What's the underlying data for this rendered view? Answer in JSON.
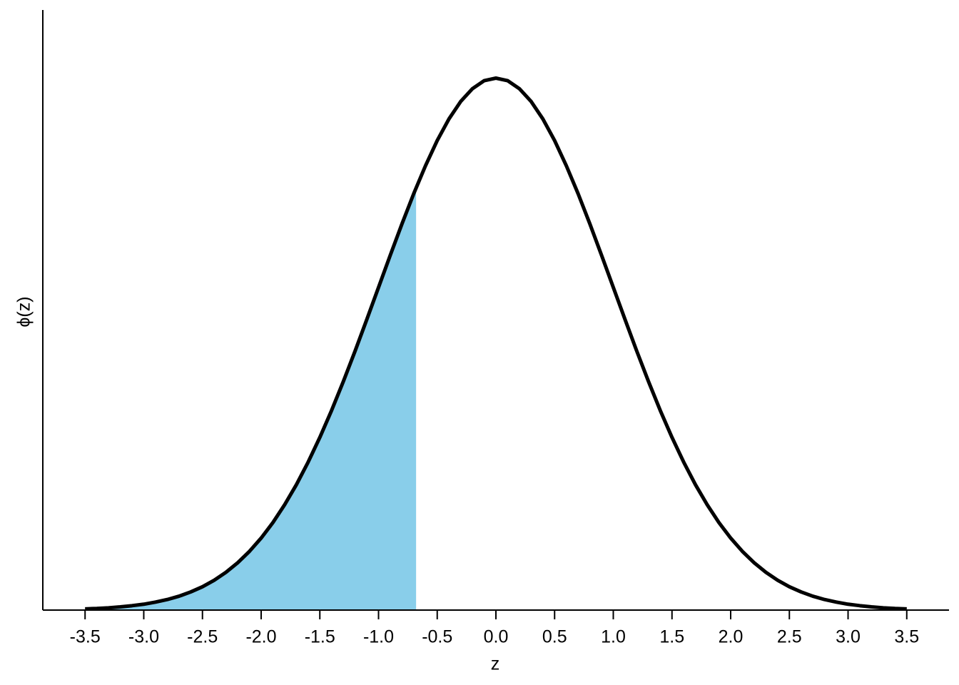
{
  "chart_data": {
    "type": "line",
    "x_label": "z",
    "y_label": "ϕ(z)",
    "x": [
      -3.5,
      -3.4,
      -3.3,
      -3.2,
      -3.1,
      -3.0,
      -2.9,
      -2.8,
      -2.7,
      -2.6,
      -2.5,
      -2.4,
      -2.3,
      -2.2,
      -2.1,
      -2.0,
      -1.9,
      -1.8,
      -1.7,
      -1.6,
      -1.5,
      -1.4,
      -1.3,
      -1.2,
      -1.1,
      -1.0,
      -0.9,
      -0.8,
      -0.7,
      -0.6,
      -0.5,
      -0.4,
      -0.3,
      -0.2,
      -0.1,
      0,
      0.1,
      0.2,
      0.3,
      0.4,
      0.5,
      0.6,
      0.7,
      0.8,
      0.9,
      1.0,
      1.1,
      1.2,
      1.3,
      1.4,
      1.5,
      1.6,
      1.7,
      1.8,
      1.9,
      2.0,
      2.1,
      2.2,
      2.3,
      2.4,
      2.5,
      2.6,
      2.7,
      2.8,
      2.9,
      3.0,
      3.1,
      3.2,
      3.3,
      3.4,
      3.5
    ],
    "values": [
      0.0009,
      0.0012,
      0.0017,
      0.0024,
      0.0033,
      0.0044,
      0.006,
      0.0079,
      0.0104,
      0.0136,
      0.0175,
      0.0224,
      0.0283,
      0.0355,
      0.044,
      0.054,
      0.0656,
      0.079,
      0.094,
      0.1109,
      0.1295,
      0.1497,
      0.1714,
      0.1942,
      0.2179,
      0.242,
      0.2661,
      0.2897,
      0.3123,
      0.3332,
      0.3521,
      0.3683,
      0.3814,
      0.391,
      0.397,
      0.3989,
      0.397,
      0.391,
      0.3814,
      0.3683,
      0.3521,
      0.3332,
      0.3123,
      0.2897,
      0.2661,
      0.242,
      0.2179,
      0.1942,
      0.1714,
      0.1497,
      0.1295,
      0.1109,
      0.094,
      0.079,
      0.0656,
      0.054,
      0.044,
      0.0355,
      0.0283,
      0.0224,
      0.0175,
      0.0136,
      0.0104,
      0.0079,
      0.006,
      0.0044,
      0.0033,
      0.0024,
      0.0017,
      0.0012,
      0.0009
    ],
    "color": "#000000",
    "shade": {
      "from": -3.5,
      "to": -0.68,
      "color": "#89ceea"
    },
    "xlim": [
      -3.86,
      3.86
    ],
    "ylim": [
      0,
      0.45
    ],
    "xticks": [
      -3.5,
      {
        "value": -3,
        "label": "-3.0"
      },
      -2.5,
      {
        "value": -2,
        "label": "-2.0"
      },
      -1.5,
      {
        "value": -1,
        "label": "-1.0"
      },
      -0.5,
      {
        "value": 0,
        "label": "0.0"
      },
      0.5,
      {
        "value": 1,
        "label": "1.0"
      },
      1.5,
      {
        "value": 2,
        "label": "2.0"
      },
      2.5,
      {
        "value": 3,
        "label": "3.0"
      },
      3.5
    ]
  }
}
